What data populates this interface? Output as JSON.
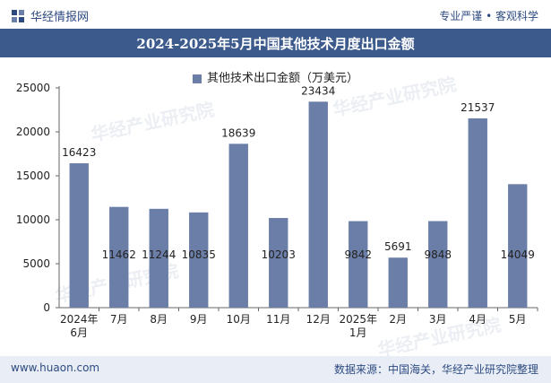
{
  "header": {
    "brand": "华经情报网",
    "tagline": "专业严谨 • 客观科学"
  },
  "chart_data": {
    "type": "bar",
    "title": "2024-2025年5月中国其他技术月度出口金额",
    "categories": [
      "2024年\n6月",
      "7月",
      "8月",
      "9月",
      "10月",
      "11月",
      "12月",
      "2025年\n1月",
      "2月",
      "3月",
      "4月",
      "5月"
    ],
    "series": [
      {
        "name": "其他技术出口金额（万美元）",
        "values": [
          16423,
          11462,
          11244,
          10835,
          18639,
          10203,
          23434,
          9842,
          5691,
          9848,
          21537,
          14049
        ],
        "color": "#6b7ea8"
      }
    ],
    "ylim": [
      0,
      25000
    ],
    "yticks": [
      0,
      5000,
      10000,
      15000,
      20000,
      25000
    ],
    "xlabel": "",
    "ylabel": ""
  },
  "footer": {
    "url": "www.huaon.com",
    "source": "数据来源：中国海关，华经产业研究院整理"
  },
  "watermark": "华经产业研究院"
}
